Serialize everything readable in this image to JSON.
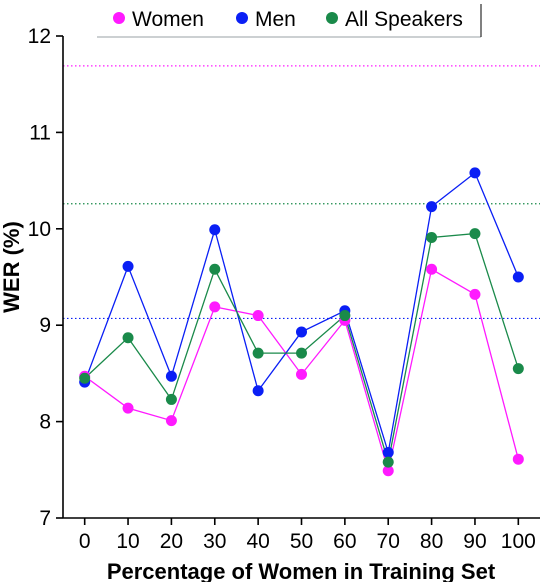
{
  "chart_data": {
    "type": "line",
    "xlabel": "Percentage of Women in Training Set",
    "ylabel": "WER (%)",
    "x": [
      0,
      10,
      20,
      30,
      40,
      50,
      60,
      70,
      80,
      90,
      100
    ],
    "xlim": [
      -5,
      105
    ],
    "ylim": [
      7,
      12
    ],
    "xticks": [
      "0",
      "10",
      "20",
      "30",
      "40",
      "50",
      "60",
      "70",
      "80",
      "90",
      "100"
    ],
    "yticks": [
      "7",
      "8",
      "9",
      "10",
      "11",
      "12"
    ],
    "series": [
      {
        "name": "Women",
        "color": "#ff1aff",
        "values": [
          8.47,
          8.14,
          8.01,
          9.19,
          9.1,
          8.49,
          9.05,
          7.49,
          9.58,
          9.32,
          7.61
        ]
      },
      {
        "name": "Men",
        "color": "#0a1ff5",
        "values": [
          8.41,
          9.61,
          8.47,
          9.99,
          8.32,
          8.93,
          9.15,
          7.68,
          10.23,
          10.58,
          9.5
        ]
      },
      {
        "name": "All Speakers",
        "color": "#1a8a4a",
        "values": [
          8.45,
          8.87,
          8.23,
          9.58,
          8.71,
          8.71,
          9.1,
          7.58,
          9.91,
          9.95,
          8.55
        ]
      }
    ],
    "reference_lines": [
      {
        "series": "Women",
        "value": 11.69,
        "color": "#ff1aff"
      },
      {
        "series": "All Speakers",
        "value": 10.26,
        "color": "#1a8a4a"
      },
      {
        "series": "Men",
        "value": 9.07,
        "color": "#0a1ff5"
      }
    ],
    "legend": {
      "placement": "top"
    },
    "grid": false
  }
}
